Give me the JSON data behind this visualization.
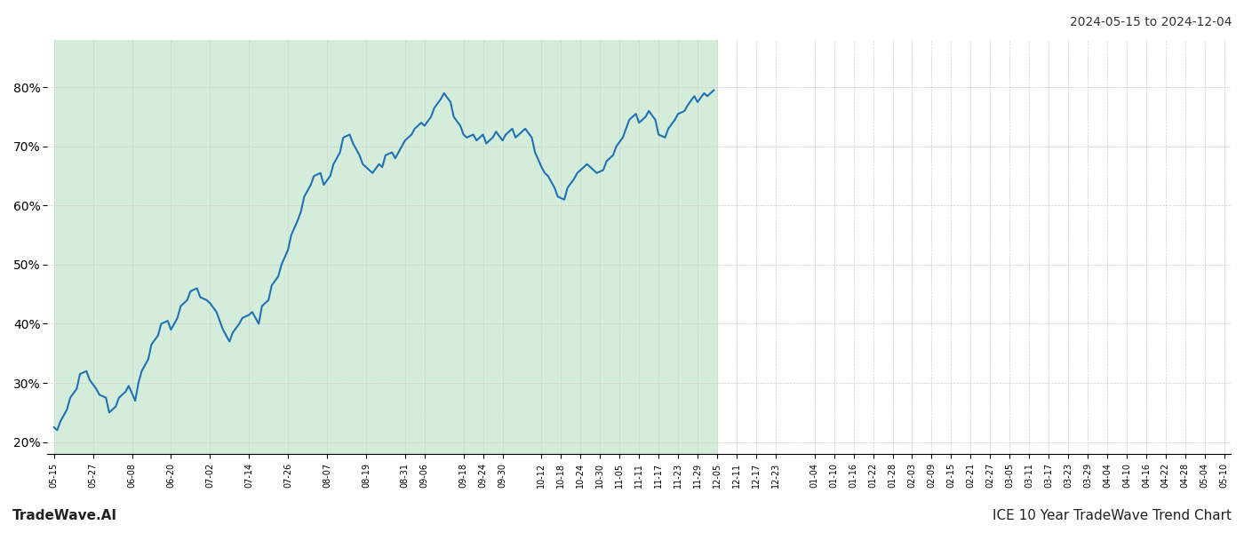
{
  "title_top_right": "2024-05-15 to 2024-12-04",
  "title_bottom_left": "TradeWave.AI",
  "title_bottom_right": "ICE 10 Year TradeWave Trend Chart",
  "date_start": "2024-05-15",
  "date_end": "2024-12-04",
  "shaded_region_start": "2024-05-15",
  "shaded_region_end": "2024-12-05",
  "shade_color": "#d4edda",
  "line_color": "#2171b5",
  "background_color": "#ffffff",
  "grid_color": "#cccccc",
  "ylim_min": 18,
  "ylim_max": 88,
  "yticks": [
    20,
    30,
    40,
    50,
    60,
    70,
    80
  ],
  "line_width": 1.5,
  "data_points": [
    [
      0,
      22.5
    ],
    [
      2,
      22.0
    ],
    [
      4,
      23.5
    ],
    [
      6,
      25.5
    ],
    [
      8,
      27.5
    ],
    [
      10,
      29.0
    ],
    [
      12,
      31.5
    ],
    [
      14,
      32.0
    ],
    [
      16,
      30.5
    ],
    [
      18,
      29.0
    ],
    [
      20,
      28.0
    ],
    [
      22,
      27.5
    ],
    [
      24,
      25.0
    ],
    [
      26,
      26.0
    ],
    [
      28,
      27.5
    ],
    [
      30,
      28.5
    ],
    [
      32,
      29.5
    ],
    [
      34,
      27.0
    ],
    [
      36,
      30.0
    ],
    [
      38,
      32.0
    ],
    [
      40,
      34.0
    ],
    [
      42,
      36.5
    ],
    [
      44,
      38.0
    ],
    [
      46,
      40.0
    ],
    [
      48,
      40.5
    ],
    [
      50,
      39.0
    ],
    [
      52,
      41.0
    ],
    [
      54,
      43.0
    ],
    [
      56,
      44.0
    ],
    [
      58,
      45.5
    ],
    [
      60,
      46.0
    ],
    [
      62,
      44.5
    ],
    [
      64,
      44.0
    ],
    [
      66,
      43.5
    ],
    [
      68,
      42.0
    ],
    [
      70,
      40.5
    ],
    [
      72,
      39.0
    ],
    [
      74,
      37.0
    ],
    [
      76,
      38.5
    ],
    [
      78,
      40.0
    ],
    [
      80,
      41.0
    ],
    [
      82,
      41.5
    ],
    [
      84,
      42.0
    ],
    [
      86,
      40.0
    ],
    [
      88,
      43.0
    ],
    [
      90,
      44.0
    ],
    [
      92,
      46.5
    ],
    [
      94,
      48.0
    ],
    [
      96,
      50.0
    ],
    [
      98,
      52.5
    ],
    [
      100,
      55.0
    ],
    [
      102,
      57.5
    ],
    [
      104,
      59.0
    ],
    [
      106,
      61.5
    ],
    [
      108,
      63.5
    ],
    [
      110,
      65.0
    ],
    [
      112,
      65.5
    ],
    [
      114,
      63.5
    ],
    [
      116,
      65.0
    ],
    [
      118,
      67.0
    ],
    [
      120,
      69.0
    ],
    [
      122,
      71.5
    ],
    [
      124,
      72.0
    ],
    [
      126,
      70.5
    ],
    [
      128,
      68.5
    ],
    [
      130,
      67.0
    ],
    [
      132,
      66.0
    ],
    [
      134,
      65.5
    ],
    [
      136,
      67.0
    ],
    [
      138,
      66.5
    ],
    [
      140,
      68.5
    ],
    [
      142,
      69.0
    ],
    [
      144,
      68.0
    ],
    [
      146,
      70.0
    ],
    [
      148,
      71.0
    ],
    [
      150,
      72.0
    ],
    [
      152,
      73.0
    ],
    [
      154,
      74.0
    ],
    [
      156,
      73.5
    ],
    [
      158,
      75.0
    ],
    [
      160,
      76.5
    ],
    [
      162,
      78.0
    ],
    [
      164,
      79.0
    ],
    [
      166,
      77.5
    ],
    [
      168,
      75.0
    ],
    [
      170,
      73.5
    ],
    [
      172,
      72.0
    ],
    [
      174,
      71.5
    ],
    [
      176,
      72.0
    ],
    [
      178,
      71.0
    ],
    [
      180,
      72.0
    ],
    [
      182,
      70.5
    ],
    [
      184,
      71.5
    ],
    [
      186,
      72.5
    ],
    [
      188,
      71.0
    ],
    [
      190,
      72.0
    ],
    [
      192,
      73.0
    ],
    [
      194,
      71.5
    ],
    [
      196,
      72.5
    ],
    [
      198,
      73.0
    ],
    [
      200,
      71.5
    ],
    [
      202,
      69.0
    ],
    [
      204,
      66.5
    ],
    [
      206,
      65.5
    ],
    [
      208,
      65.0
    ],
    [
      210,
      63.0
    ],
    [
      212,
      61.5
    ],
    [
      214,
      61.0
    ],
    [
      216,
      63.0
    ],
    [
      218,
      64.5
    ],
    [
      220,
      65.5
    ],
    [
      222,
      66.5
    ],
    [
      224,
      67.0
    ],
    [
      226,
      66.0
    ],
    [
      228,
      65.5
    ],
    [
      230,
      66.0
    ],
    [
      232,
      67.5
    ],
    [
      234,
      68.5
    ],
    [
      236,
      70.0
    ],
    [
      238,
      71.5
    ],
    [
      240,
      73.0
    ],
    [
      242,
      74.5
    ],
    [
      244,
      75.5
    ],
    [
      246,
      74.0
    ],
    [
      248,
      75.0
    ],
    [
      250,
      76.0
    ],
    [
      252,
      74.5
    ],
    [
      254,
      72.0
    ],
    [
      256,
      71.5
    ],
    [
      258,
      73.0
    ],
    [
      260,
      74.5
    ],
    [
      262,
      75.5
    ],
    [
      264,
      76.0
    ],
    [
      266,
      77.0
    ],
    [
      268,
      78.5
    ],
    [
      270,
      77.5
    ],
    [
      272,
      79.0
    ],
    [
      274,
      78.5
    ],
    [
      276,
      79.5
    ]
  ],
  "xtick_dates": [
    "2024-05-15",
    "2024-05-27",
    "2024-06-08",
    "2024-06-20",
    "2024-07-02",
    "2024-07-14",
    "2024-07-26",
    "2024-08-07",
    "2024-08-19",
    "2024-08-31",
    "2024-09-06",
    "2024-09-18",
    "2024-09-24",
    "2024-09-30",
    "2024-10-12",
    "2024-10-18",
    "2024-10-24",
    "2024-10-30",
    "2024-11-05",
    "2024-11-11",
    "2024-11-17",
    "2024-11-23",
    "2024-11-29",
    "2024-12-05",
    "2024-12-11",
    "2024-12-17",
    "2024-12-23",
    "2025-01-04",
    "2025-01-10",
    "2025-01-16",
    "2025-01-22",
    "2025-01-28",
    "2025-02-03",
    "2025-02-09",
    "2025-02-15",
    "2025-02-21",
    "2025-02-27",
    "2025-03-05",
    "2025-03-11",
    "2025-03-17",
    "2025-03-23",
    "2025-03-29",
    "2025-04-04",
    "2025-04-10",
    "2025-04-16",
    "2025-04-22",
    "2025-04-28",
    "2025-05-04",
    "2025-05-10"
  ]
}
